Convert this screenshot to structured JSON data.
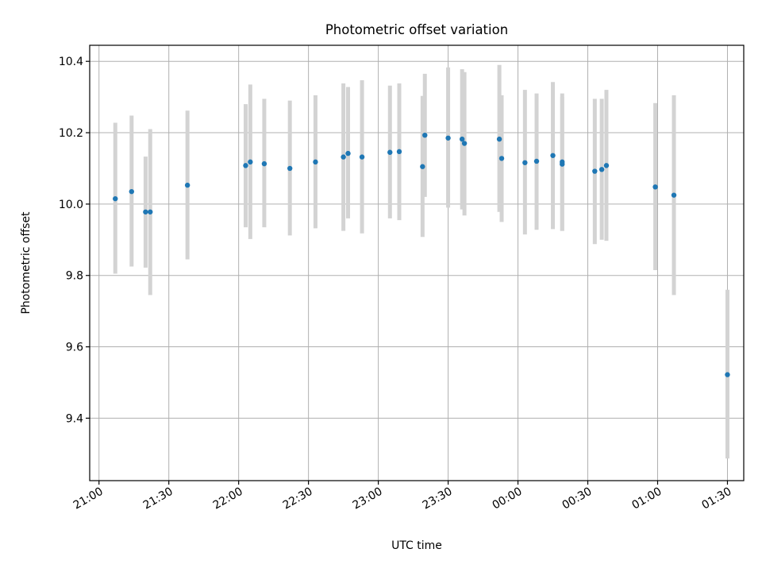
{
  "chart_data": {
    "type": "scatter",
    "title": "Photometric offset variation",
    "xlabel": "UTC time",
    "ylabel": "Photometric offset",
    "x_axis_type": "time",
    "x_start_date": "2000-01-01",
    "xlim": [
      "2000-01-01T20:56:00",
      "2000-01-02T01:37:00"
    ],
    "ylim": [
      9.225,
      10.445
    ],
    "xtick_values": [
      "2000-01-01T21:00",
      "2000-01-01T21:30",
      "2000-01-01T22:00",
      "2000-01-01T22:30",
      "2000-01-01T23:00",
      "2000-01-01T23:30",
      "2000-01-02T00:00",
      "2000-01-02T00:30",
      "2000-01-02T01:00",
      "2000-01-02T01:30"
    ],
    "xtick_labels": [
      "21:00",
      "21:30",
      "22:00",
      "22:30",
      "23:00",
      "23:30",
      "00:00",
      "00:30",
      "01:00",
      "01:30"
    ],
    "yticks": [
      9.4,
      9.6,
      9.8,
      10.0,
      10.2,
      10.4
    ],
    "ytick_labels": [
      "9.4",
      "9.6",
      "9.8",
      "10.0",
      "10.2",
      "10.4"
    ],
    "grid": true,
    "point_color": "#1f77b4",
    "errorbar_color": "#d3d3d3",
    "points": [
      {
        "x": "2000-01-01T21:07",
        "y": 10.015,
        "err_low": 9.805,
        "err_high": 10.228
      },
      {
        "x": "2000-01-01T21:14",
        "y": 10.035,
        "err_low": 9.825,
        "err_high": 10.248
      },
      {
        "x": "2000-01-01T21:20",
        "y": 9.978,
        "err_low": 9.822,
        "err_high": 10.133
      },
      {
        "x": "2000-01-01T21:22",
        "y": 9.978,
        "err_low": 9.745,
        "err_high": 10.21
      },
      {
        "x": "2000-01-01T21:38",
        "y": 10.053,
        "err_low": 9.845,
        "err_high": 10.262
      },
      {
        "x": "2000-01-01T22:03",
        "y": 10.108,
        "err_low": 9.935,
        "err_high": 10.28
      },
      {
        "x": "2000-01-01T22:05",
        "y": 10.118,
        "err_low": 9.902,
        "err_high": 10.335
      },
      {
        "x": "2000-01-01T22:11",
        "y": 10.113,
        "err_low": 9.935,
        "err_high": 10.295
      },
      {
        "x": "2000-01-01T22:22",
        "y": 10.1,
        "err_low": 9.912,
        "err_high": 10.29
      },
      {
        "x": "2000-01-01T22:33",
        "y": 10.118,
        "err_low": 9.932,
        "err_high": 10.305
      },
      {
        "x": "2000-01-01T22:45",
        "y": 10.132,
        "err_low": 9.925,
        "err_high": 10.338
      },
      {
        "x": "2000-01-01T22:47",
        "y": 10.142,
        "err_low": 9.96,
        "err_high": 10.328
      },
      {
        "x": "2000-01-01T22:53",
        "y": 10.132,
        "err_low": 9.918,
        "err_high": 10.347
      },
      {
        "x": "2000-01-01T23:05",
        "y": 10.145,
        "err_low": 9.96,
        "err_high": 10.332
      },
      {
        "x": "2000-01-01T23:09",
        "y": 10.147,
        "err_low": 9.955,
        "err_high": 10.338
      },
      {
        "x": "2000-01-01T23:19",
        "y": 10.105,
        "err_low": 9.908,
        "err_high": 10.303
      },
      {
        "x": "2000-01-01T23:20",
        "y": 10.193,
        "err_low": 10.02,
        "err_high": 10.365
      },
      {
        "x": "2000-01-01T23:30",
        "y": 10.185,
        "err_low": 9.99,
        "err_high": 10.383
      },
      {
        "x": "2000-01-01T23:36",
        "y": 10.182,
        "err_low": 9.985,
        "err_high": 10.378
      },
      {
        "x": "2000-01-01T23:37",
        "y": 10.17,
        "err_low": 9.968,
        "err_high": 10.37
      },
      {
        "x": "2000-01-01T23:52",
        "y": 10.182,
        "err_low": 9.978,
        "err_high": 10.39
      },
      {
        "x": "2000-01-01T23:53",
        "y": 10.128,
        "err_low": 9.95,
        "err_high": 10.305
      },
      {
        "x": "2000-01-02T00:03",
        "y": 10.116,
        "err_low": 9.915,
        "err_high": 10.32
      },
      {
        "x": "2000-01-02T00:08",
        "y": 10.12,
        "err_low": 9.928,
        "err_high": 10.31
      },
      {
        "x": "2000-01-02T00:15",
        "y": 10.136,
        "err_low": 9.93,
        "err_high": 10.342
      },
      {
        "x": "2000-01-02T00:19",
        "y": 10.112,
        "err_low": 9.925,
        "err_high": 10.3
      },
      {
        "x": "2000-01-02T00:19",
        "y": 10.118,
        "err_low": 9.925,
        "err_high": 10.31
      },
      {
        "x": "2000-01-02T00:33",
        "y": 10.092,
        "err_low": 9.888,
        "err_high": 10.295
      },
      {
        "x": "2000-01-02T00:36",
        "y": 10.097,
        "err_low": 9.9,
        "err_high": 10.295
      },
      {
        "x": "2000-01-02T00:38",
        "y": 10.108,
        "err_low": 9.897,
        "err_high": 10.32
      },
      {
        "x": "2000-01-02T00:59",
        "y": 10.048,
        "err_low": 9.815,
        "err_high": 10.283
      },
      {
        "x": "2000-01-02T01:07",
        "y": 10.025,
        "err_low": 9.745,
        "err_high": 10.305
      },
      {
        "x": "2000-01-02T01:30",
        "y": 9.522,
        "err_low": 9.287,
        "err_high": 9.76
      }
    ]
  }
}
